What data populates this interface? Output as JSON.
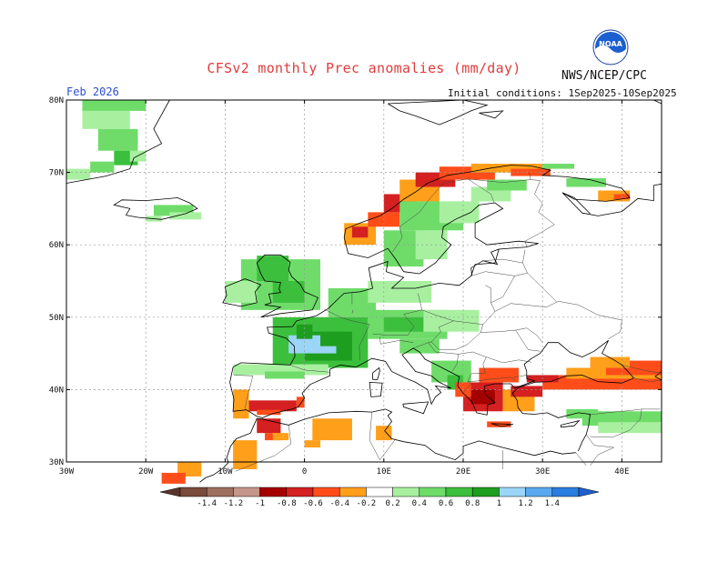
{
  "title": "CFSv2 monthly Prec anomalies (mm/day)",
  "agency": "NWS/NCEP/CPC",
  "logo_text": "NOAA",
  "valid_month": "Feb 2026",
  "initial_conditions": "Initial conditions: 1Sep2025-10Sep2025",
  "lat_labels": [
    "80N",
    "70N",
    "60N",
    "50N",
    "40N",
    "30N"
  ],
  "lon_labels": [
    "30W",
    "20W",
    "10W",
    "0",
    "10E",
    "20E",
    "30E",
    "40E"
  ],
  "colorbar": {
    "labels": [
      "-1.4",
      "-1.2",
      "-1",
      "-0.8",
      "-0.6",
      "-0.4",
      "-0.2",
      "0.2",
      "0.4",
      "0.6",
      "0.8",
      "1",
      "1.2",
      "1.4"
    ],
    "colors": [
      "#7a4a3a",
      "#9d6f5f",
      "#c4968a",
      "#a50000",
      "#d42020",
      "#ff4d1a",
      "#ff9f1a",
      "#ffffff",
      "#a8f0a0",
      "#6fdc6a",
      "#3cbf3c",
      "#1e9e1e",
      "#9bd5f7",
      "#5aa9f0",
      "#2a7de0"
    ]
  },
  "colors": {
    "title": "#e03c3c",
    "month": "#2b4fd1",
    "coast": "#000000",
    "border": "#444444",
    "grid": "#999999"
  }
}
